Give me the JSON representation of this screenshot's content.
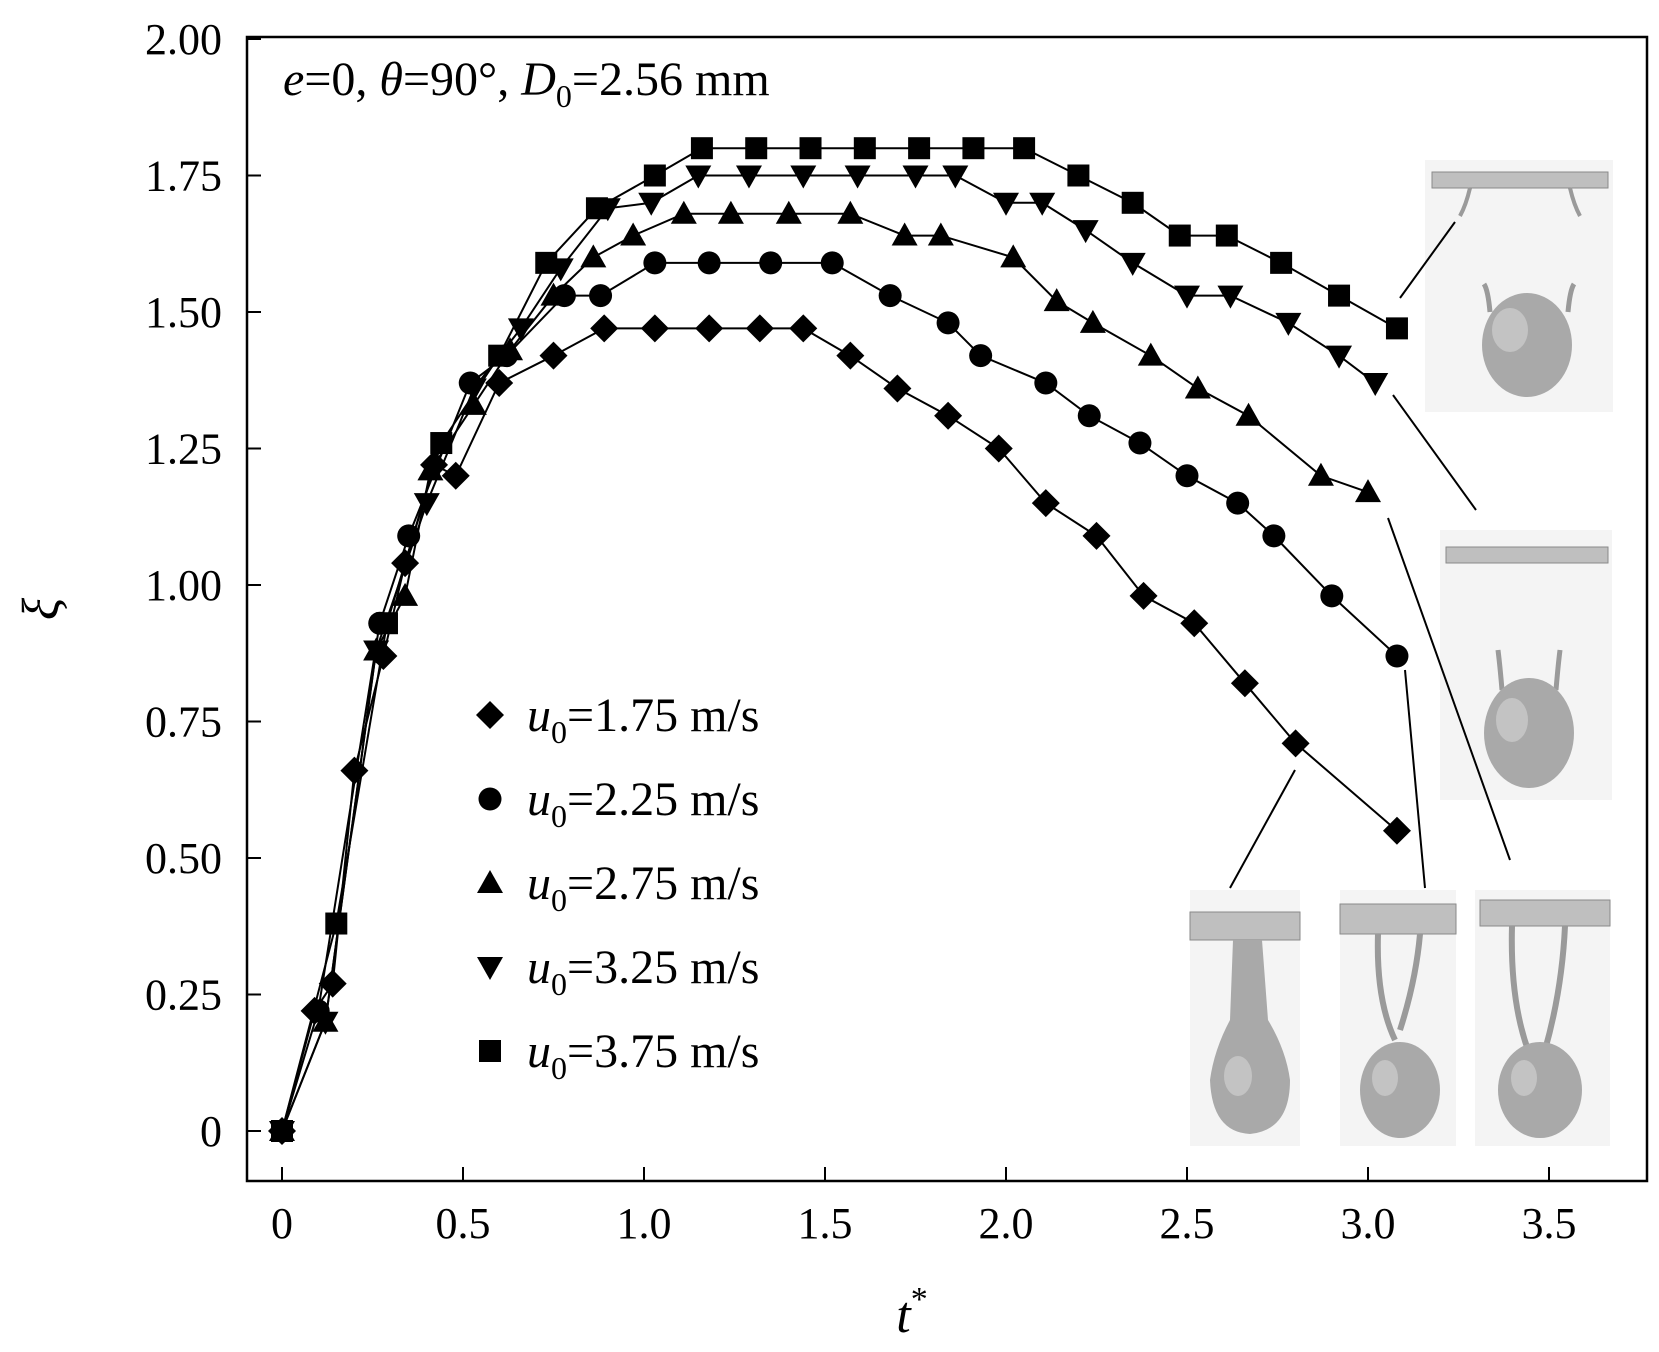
{
  "chart_data": {
    "type": "line",
    "title": "",
    "annotation": {
      "e_sym": "e",
      "e_val": "=0, ",
      "theta_sym": "θ",
      "theta_val": "=90°, ",
      "d_sym": "D",
      "d_sub": "0",
      "d_val": "=2.56 mm"
    },
    "xlabel": "t",
    "xlabel_sup": "*",
    "ylabel": "ξ",
    "xlim": [
      -0.1,
      3.9
    ],
    "ylim": [
      -0.1,
      2.0
    ],
    "xticks": [
      0,
      0.5,
      1.0,
      1.5,
      2.0,
      2.5,
      3.0,
      3.5
    ],
    "xtick_labels": [
      "0",
      "0.5",
      "1.0",
      "1.5",
      "2.0",
      "2.5",
      "3.0",
      "3.5"
    ],
    "yticks": [
      0,
      0.25,
      0.5,
      0.75,
      1.0,
      1.25,
      1.5,
      1.75,
      2.0
    ],
    "ytick_labels": [
      "0",
      "0.25",
      "0.50",
      "0.75",
      "1.00",
      "1.25",
      "1.50",
      "1.75",
      "2.00"
    ],
    "legend_position": "center-left",
    "series": [
      {
        "name": "u0=1.75 m/s",
        "sym": "u",
        "sub": "0",
        "val": "=1.75 m/s",
        "marker": "diamond",
        "x": [
          0,
          0.09,
          0.14,
          0.2,
          0.28,
          0.34,
          0.42,
          0.48,
          0.6,
          0.75,
          0.89,
          1.03,
          1.18,
          1.32,
          1.44,
          1.57,
          1.7,
          1.84,
          1.98,
          2.11,
          2.25,
          2.38,
          2.52,
          2.66,
          2.8,
          3.08
        ],
        "y": [
          0,
          0.22,
          0.27,
          0.66,
          0.87,
          1.04,
          1.22,
          1.2,
          1.37,
          1.42,
          1.47,
          1.47,
          1.47,
          1.47,
          1.47,
          1.42,
          1.36,
          1.31,
          1.25,
          1.15,
          1.09,
          0.98,
          0.93,
          0.82,
          0.71,
          0.55
        ]
      },
      {
        "name": "u0=2.25 m/s",
        "sym": "u",
        "sub": "0",
        "val": "=2.25 m/s",
        "marker": "circle",
        "x": [
          0,
          0.1,
          0.27,
          0.35,
          0.52,
          0.62,
          0.78,
          0.88,
          1.03,
          1.18,
          1.35,
          1.52,
          1.68,
          1.84,
          1.93,
          2.11,
          2.23,
          2.37,
          2.5,
          2.64,
          2.74,
          2.9,
          3.08
        ],
        "y": [
          0,
          0.22,
          0.93,
          1.09,
          1.37,
          1.42,
          1.53,
          1.53,
          1.59,
          1.59,
          1.59,
          1.59,
          1.53,
          1.48,
          1.42,
          1.37,
          1.31,
          1.26,
          1.2,
          1.15,
          1.09,
          0.98,
          0.87
        ]
      },
      {
        "name": "u0=2.75 m/s",
        "sym": "u",
        "sub": "0",
        "val": "=2.75 m/s",
        "marker": "triangle-up",
        "x": [
          0,
          0.12,
          0.26,
          0.34,
          0.41,
          0.53,
          0.63,
          0.75,
          0.86,
          0.97,
          1.11,
          1.24,
          1.4,
          1.57,
          1.72,
          1.82,
          2.02,
          2.14,
          2.24,
          2.4,
          2.53,
          2.67,
          2.87,
          3.0
        ],
        "y": [
          0,
          0.2,
          0.88,
          0.98,
          1.21,
          1.33,
          1.43,
          1.53,
          1.6,
          1.64,
          1.68,
          1.68,
          1.68,
          1.68,
          1.64,
          1.64,
          1.6,
          1.52,
          1.48,
          1.42,
          1.36,
          1.31,
          1.2,
          1.17
        ]
      },
      {
        "name": "u0=3.25 m/s",
        "sym": "u",
        "sub": "0",
        "val": "=3.25 m/s",
        "marker": "triangle-down",
        "x": [
          0,
          0.12,
          0.26,
          0.4,
          0.53,
          0.66,
          0.77,
          0.9,
          1.02,
          1.15,
          1.29,
          1.44,
          1.59,
          1.75,
          1.86,
          2.0,
          2.1,
          2.22,
          2.35,
          2.5,
          2.62,
          2.78,
          2.92,
          3.02
        ],
        "y": [
          0,
          0.2,
          0.88,
          1.15,
          1.36,
          1.47,
          1.58,
          1.69,
          1.7,
          1.75,
          1.75,
          1.75,
          1.75,
          1.75,
          1.75,
          1.7,
          1.7,
          1.65,
          1.59,
          1.53,
          1.53,
          1.48,
          1.42,
          1.37
        ]
      },
      {
        "name": "u0=3.75 m/s",
        "sym": "u",
        "sub": "0",
        "val": "=3.75 m/s",
        "marker": "square",
        "x": [
          0,
          0.15,
          0.29,
          0.44,
          0.6,
          0.73,
          0.87,
          1.03,
          1.16,
          1.31,
          1.46,
          1.61,
          1.76,
          1.91,
          2.05,
          2.2,
          2.35,
          2.48,
          2.61,
          2.76,
          2.92,
          3.08
        ],
        "y": [
          0,
          0.38,
          0.93,
          1.26,
          1.42,
          1.59,
          1.69,
          1.75,
          1.8,
          1.8,
          1.8,
          1.8,
          1.8,
          1.8,
          1.8,
          1.75,
          1.7,
          1.64,
          1.64,
          1.59,
          1.53,
          1.47
        ]
      }
    ]
  }
}
